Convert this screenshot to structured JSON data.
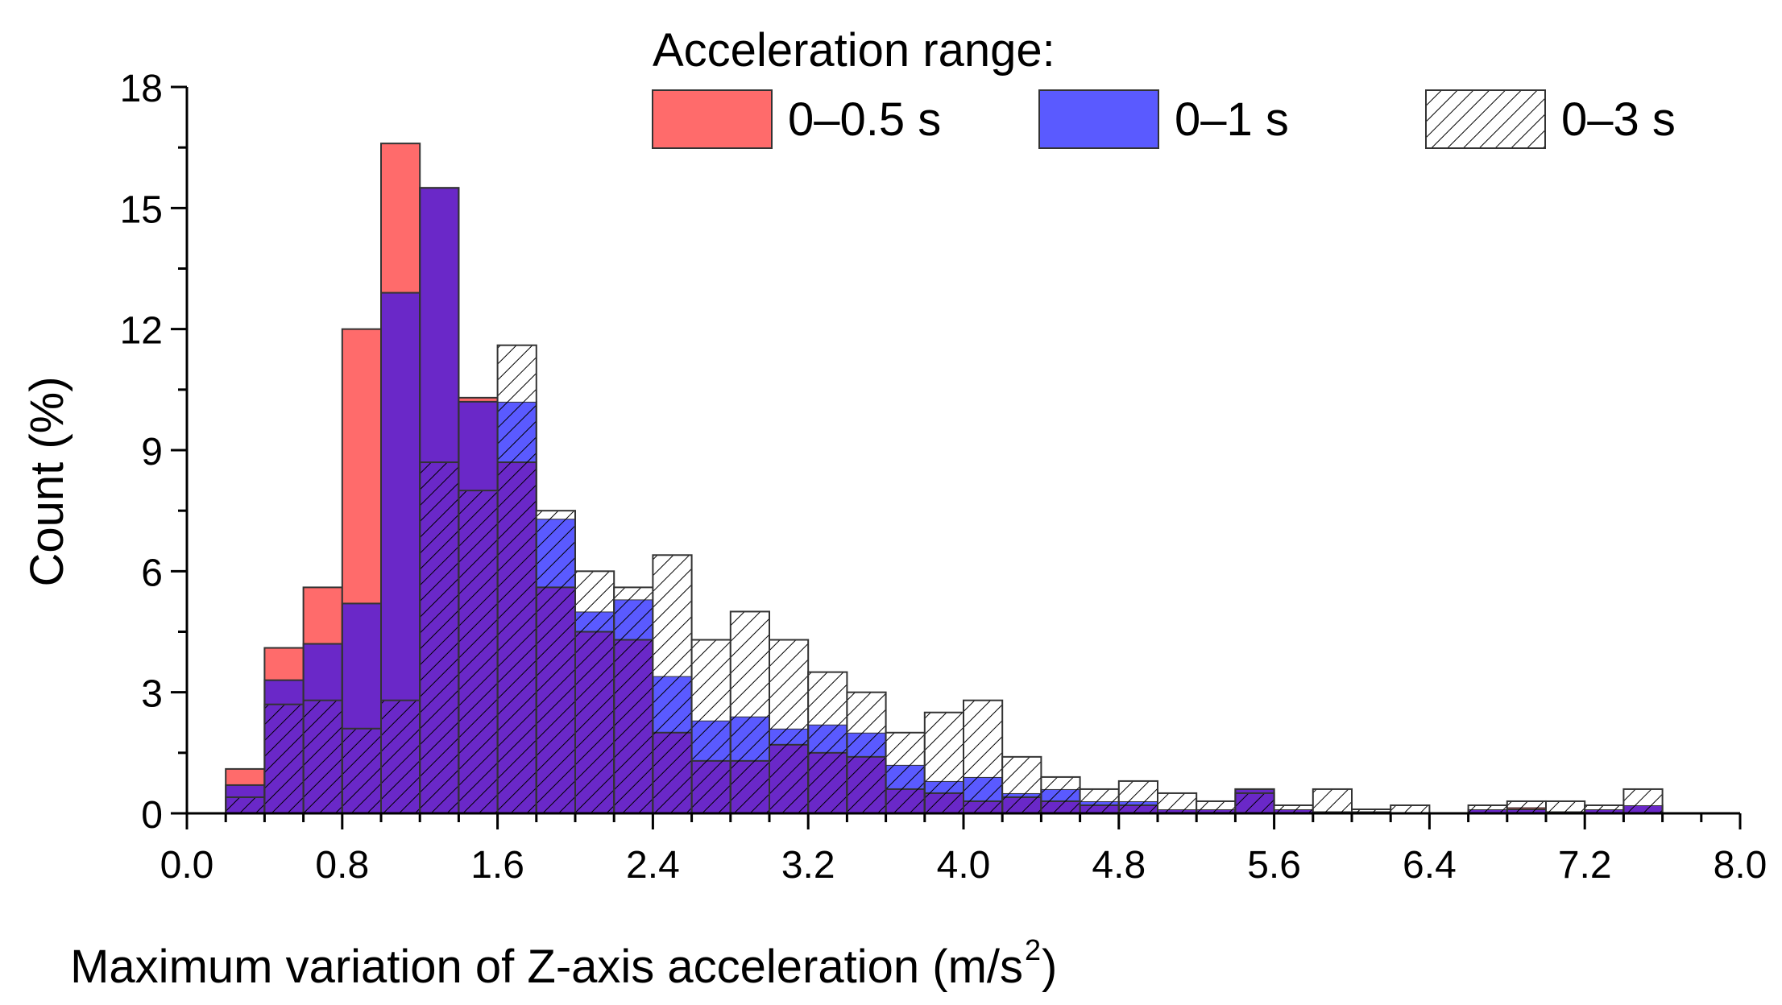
{
  "chart_data": {
    "type": "bar",
    "subtype": "overlapping-histogram",
    "bin_width": 0.2,
    "x_start": 0.2,
    "xlabel": "Maximum variation of Z-axis acceleration (m/s",
    "xlabel_sup": "2",
    "xlabel_close": ")",
    "ylabel": "Count (%)",
    "xlim": [
      0.0,
      8.0
    ],
    "ylim": [
      0,
      18
    ],
    "x_ticks": [
      "0.0",
      "0.8",
      "1.6",
      "2.4",
      "3.2",
      "4.0",
      "4.8",
      "5.6",
      "6.4",
      "7.2",
      "8.0"
    ],
    "y_ticks": [
      "0",
      "3",
      "6",
      "9",
      "12",
      "15",
      "18"
    ],
    "legend": {
      "title": "Acceleration range:",
      "position": "top-right"
    },
    "colors": {
      "s05": "#ff6b6b",
      "s1": "#5a5aff",
      "s3_hatch": "#000000",
      "overlap": "#6a28c8"
    },
    "series": [
      {
        "name": "0–0.5 s",
        "key": "s05",
        "values": [
          1.1,
          4.1,
          5.6,
          12.0,
          16.6,
          15.5,
          10.3,
          8.7,
          5.6,
          4.5,
          4.3,
          2.0,
          1.3,
          1.3,
          1.7,
          1.5,
          1.4,
          0.6,
          0.5,
          0.3,
          0.4,
          0.3,
          0.2,
          0.2,
          0.1,
          0.1,
          0.6,
          0.1,
          0.05,
          0.05,
          0.0,
          0.0,
          0.1,
          0.15,
          0.05,
          0.1,
          0.2
        ]
      },
      {
        "name": "0–1 s",
        "key": "s1",
        "values": [
          0.7,
          3.3,
          4.2,
          5.2,
          12.9,
          15.5,
          10.2,
          10.2,
          7.3,
          5.0,
          5.3,
          3.4,
          2.3,
          2.4,
          2.1,
          2.2,
          2.0,
          1.2,
          0.8,
          0.9,
          0.5,
          0.6,
          0.3,
          0.3,
          0.1,
          0.1,
          0.6,
          0.1,
          0.05,
          0.05,
          0.0,
          0.0,
          0.1,
          0.1,
          0.05,
          0.1,
          0.2
        ]
      },
      {
        "name": "0–3 s",
        "key": "s3",
        "values": [
          0.4,
          2.7,
          2.8,
          2.1,
          2.8,
          8.7,
          8.0,
          11.6,
          7.5,
          6.0,
          5.6,
          6.4,
          4.3,
          5.0,
          4.3,
          3.5,
          3.0,
          2.0,
          2.5,
          2.8,
          1.4,
          0.9,
          0.6,
          0.8,
          0.5,
          0.3,
          0.5,
          0.2,
          0.6,
          0.1,
          0.2,
          0.0,
          0.2,
          0.3,
          0.3,
          0.2,
          0.6
        ]
      }
    ]
  }
}
